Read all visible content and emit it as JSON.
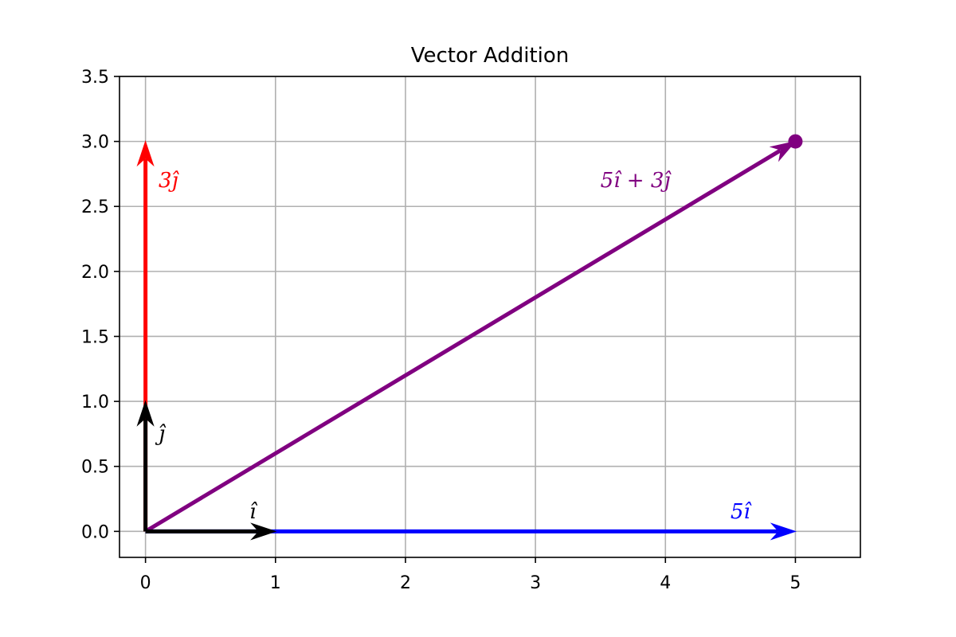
{
  "chart_data": {
    "type": "vector",
    "title": "Vector Addition",
    "xlabel": "",
    "ylabel": "",
    "xlim": [
      -0.2,
      5.5
    ],
    "ylim": [
      -0.2,
      3.5
    ],
    "grid": true,
    "x_ticks": [
      "0",
      "1",
      "2",
      "3",
      "4",
      "5"
    ],
    "y_ticks": [
      "0.0",
      "0.5",
      "1.0",
      "1.5",
      "2.0",
      "2.5",
      "3.0",
      "3.5"
    ],
    "vectors": [
      {
        "name": "3j-vector",
        "label": "3ĵ",
        "from": [
          0,
          0
        ],
        "to": [
          0,
          3
        ],
        "color": "#ff0000"
      },
      {
        "name": "5i-vector",
        "label": "5î",
        "from": [
          0,
          0
        ],
        "to": [
          5,
          0
        ],
        "color": "#0000ff"
      },
      {
        "name": "resultant-vector",
        "label": "5î + 3ĵ",
        "from": [
          0,
          0
        ],
        "to": [
          5,
          3
        ],
        "color": "#800080"
      },
      {
        "name": "j-hat-vector",
        "label": "ĵ",
        "from": [
          0,
          0
        ],
        "to": [
          0,
          1
        ],
        "color": "#000000"
      },
      {
        "name": "i-hat-vector",
        "label": "î",
        "from": [
          0,
          0
        ],
        "to": [
          1,
          0
        ],
        "color": "#000000"
      }
    ],
    "labels": [
      {
        "name": "label-3j",
        "text": "3ĵ",
        "x": 0.1,
        "y": 2.65,
        "color": "#ff0000"
      },
      {
        "name": "label-resultant",
        "text": "5î + 3ĵ",
        "x": 3.5,
        "y": 2.65,
        "color": "#800080"
      },
      {
        "name": "label-j-hat",
        "text": "ĵ",
        "x": 0.1,
        "y": 0.7,
        "color": "#000000"
      },
      {
        "name": "label-i-hat",
        "text": "î",
        "x": 0.8,
        "y": 0.1,
        "color": "#000000"
      },
      {
        "name": "label-5i",
        "text": "5î",
        "x": 4.5,
        "y": 0.1,
        "color": "#0000ff"
      }
    ],
    "points": [
      {
        "name": "endpoint-marker",
        "x": 5,
        "y": 3,
        "color": "#800080"
      }
    ]
  }
}
